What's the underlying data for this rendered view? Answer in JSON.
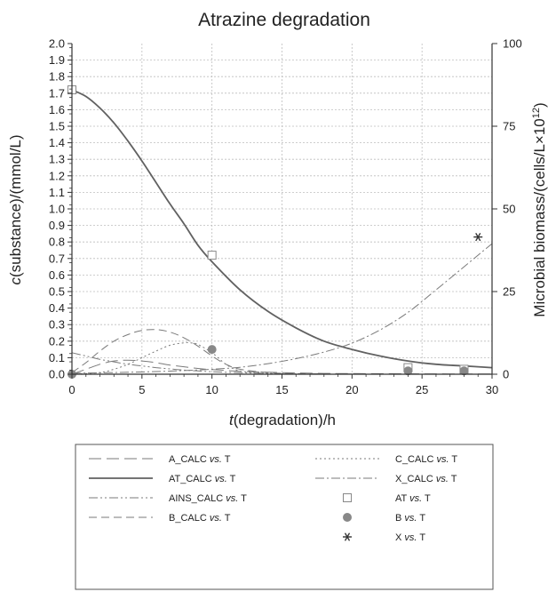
{
  "chart_data": {
    "type": "line",
    "title": "Atrazine degradation",
    "xlabel_prefix": "t",
    "xlabel_suffix": "(degradation)/h",
    "ylabel_prefix": "c",
    "ylabel_suffix": "(substance)/(mmol/L)",
    "y2label_main": "Microbial biomass/(cells/L×10",
    "y2label_exp": "12",
    "y2label_close": ")",
    "xlim": [
      0,
      30
    ],
    "ylim": [
      0,
      2.0
    ],
    "y2lim": [
      0,
      100
    ],
    "xticks": [
      0,
      5,
      10,
      15,
      20,
      25,
      30
    ],
    "yticks": [
      0.0,
      0.1,
      0.2,
      0.3,
      0.4,
      0.5,
      0.6,
      0.7,
      0.8,
      0.9,
      1.0,
      1.1,
      1.2,
      1.3,
      1.4,
      1.5,
      1.6,
      1.7,
      1.8,
      1.9,
      2.0
    ],
    "y2ticks": [
      0,
      25,
      50,
      75,
      100
    ],
    "grid": true,
    "legend_position": "below the plot",
    "series": [
      {
        "name": "A_CALC",
        "legend": "vs.",
        "legend_tail": "T",
        "axis": "left",
        "style": "long-dash",
        "x": [
          0,
          1,
          2,
          3,
          4,
          5,
          6,
          7,
          8,
          9,
          10,
          12,
          14,
          16,
          18,
          20,
          25,
          30
        ],
        "y": [
          0.0,
          0.03,
          0.06,
          0.08,
          0.085,
          0.08,
          0.07,
          0.055,
          0.045,
          0.035,
          0.028,
          0.018,
          0.012,
          0.008,
          0.005,
          0.004,
          0.002,
          0.001
        ]
      },
      {
        "name": "AT_CALC",
        "legend": "vs.",
        "legend_tail": "T",
        "axis": "left",
        "style": "solid",
        "x": [
          0,
          1,
          2,
          3,
          4,
          5,
          6,
          7,
          8,
          9,
          10,
          12,
          14,
          16,
          18,
          20,
          22,
          24,
          26,
          28,
          30
        ],
        "y": [
          1.72,
          1.68,
          1.61,
          1.52,
          1.41,
          1.29,
          1.16,
          1.03,
          0.91,
          0.78,
          0.68,
          0.51,
          0.38,
          0.28,
          0.2,
          0.15,
          0.11,
          0.08,
          0.06,
          0.05,
          0.04
        ]
      },
      {
        "name": "AINS_CALC",
        "legend": "vs.",
        "legend_tail": "T",
        "axis": "left",
        "style": "dash-dot-dot",
        "x": [
          0,
          1,
          2,
          3,
          4,
          5,
          6,
          7,
          8,
          9,
          10,
          12,
          14,
          16
        ],
        "y": [
          0.13,
          0.11,
          0.09,
          0.075,
          0.06,
          0.05,
          0.04,
          0.032,
          0.025,
          0.02,
          0.015,
          0.009,
          0.005,
          0.003
        ]
      },
      {
        "name": "B_CALC",
        "legend": "vs.",
        "legend_tail": "T",
        "axis": "left",
        "style": "medium-dash",
        "x": [
          0,
          1,
          2,
          3,
          4,
          5,
          6,
          7,
          8,
          9,
          10,
          11,
          12,
          14,
          16,
          20
        ],
        "y": [
          0.01,
          0.07,
          0.14,
          0.2,
          0.24,
          0.265,
          0.27,
          0.255,
          0.22,
          0.17,
          0.11,
          0.06,
          0.03,
          0.01,
          0.004,
          0.001
        ]
      },
      {
        "name": "C_CALC",
        "legend": "vs.",
        "legend_tail": "T",
        "axis": "left",
        "style": "dotted",
        "x": [
          0,
          2,
          3,
          4,
          5,
          6,
          7,
          8,
          8.5,
          9,
          10,
          11,
          12,
          14,
          16
        ],
        "y": [
          0.0,
          0.01,
          0.03,
          0.06,
          0.1,
          0.14,
          0.175,
          0.19,
          0.19,
          0.18,
          0.13,
          0.06,
          0.02,
          0.005,
          0.001
        ]
      },
      {
        "name": "X_CALC",
        "legend": "vs.",
        "legend_tail": "T",
        "axis": "right",
        "style": "dash-dot",
        "x": [
          0,
          3,
          6,
          8,
          10,
          12,
          14,
          16,
          18,
          20,
          22,
          24,
          26,
          28,
          30
        ],
        "y": [
          0.3,
          0.5,
          0.8,
          1.1,
          1.5,
          2.1,
          3.2,
          4.7,
          6.7,
          9.4,
          13.4,
          18.7,
          25.5,
          32.5,
          39.5
        ]
      }
    ],
    "points": [
      {
        "name": "AT",
        "legend": "vs.",
        "legend_tail": "T",
        "axis": "left",
        "marker": "square",
        "x": [
          0,
          10,
          24,
          28
        ],
        "y": [
          1.72,
          0.72,
          0.04,
          0.03
        ]
      },
      {
        "name": "B",
        "legend": "vs.",
        "legend_tail": "T",
        "axis": "left",
        "marker": "circle",
        "x": [
          0,
          10,
          24,
          28
        ],
        "y": [
          0.0,
          0.15,
          0.02,
          0.02
        ]
      },
      {
        "name": "X",
        "legend": "vs.",
        "legend_tail": "T",
        "axis": "right",
        "marker": "asterisk",
        "x": [
          29
        ],
        "y": [
          41.5
        ]
      }
    ],
    "colors": {
      "curve": "#7a7a7a",
      "solid": "#616161",
      "marker": "#888888",
      "grid": "#bdbdbd",
      "axis": "#333333"
    }
  }
}
